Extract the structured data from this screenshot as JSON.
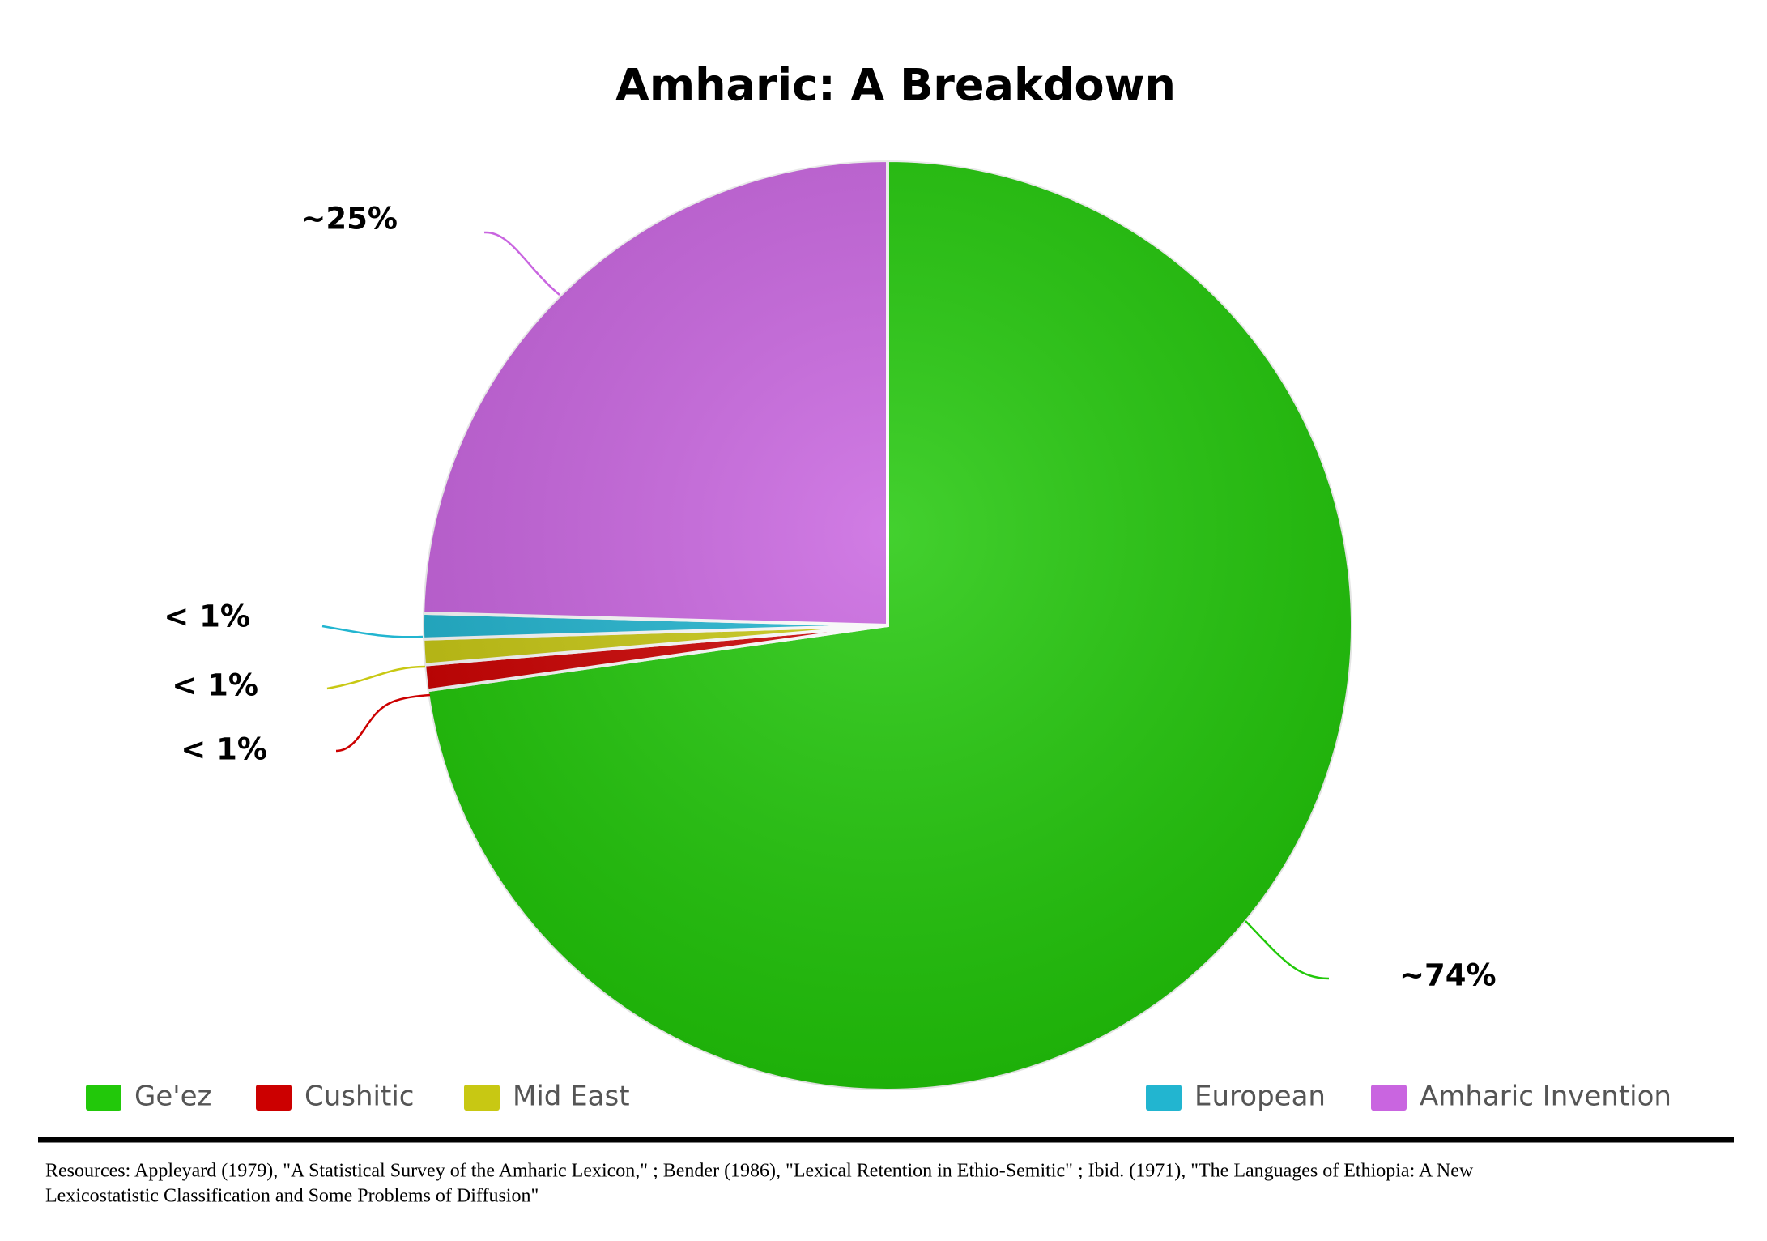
{
  "chart_data": {
    "type": "pie",
    "title": "Amharic: A Breakdown",
    "categories": [
      "Ge'ez",
      "Cushitic",
      "Mid East",
      "European",
      "Amharic Invention"
    ],
    "values": [
      74,
      0.9,
      0.9,
      0.9,
      25
    ],
    "value_labels": [
      "~74%",
      "< 1%",
      "< 1%",
      "< 1%",
      "~25%"
    ],
    "colors": [
      "#22c80a",
      "#cc0000",
      "#c8c813",
      "#22b5d0",
      "#c965e0"
    ],
    "legend": "bottom"
  },
  "footer": {
    "lines": [
      "Resources: Appleyard (1979), \"A Statistical Survey of the Amharic Lexicon,\" ; Bender (1986), \"Lexical Retention in Ethio-Semitic\" ; Ibid. (1971), \"The Languages of Ethiopia: A New",
      "Lexicostatistic Classification and Some Problems of Diffusion\""
    ]
  }
}
